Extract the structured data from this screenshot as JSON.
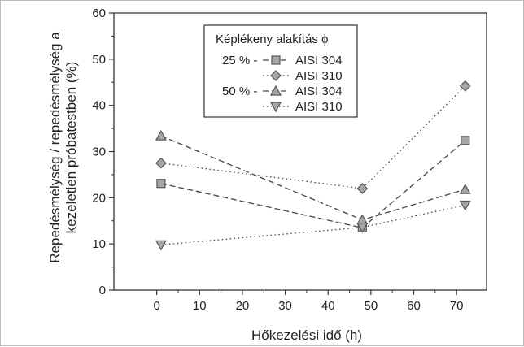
{
  "chart_data": {
    "type": "line",
    "xlabel": "Hőkezelési idő (h)",
    "ylabel_line1": "Repedésmélység / repedésmélység a",
    "ylabel_line2": "kezeletlen próbatestben (%)",
    "xlim": [
      -10,
      77
    ],
    "ylim": [
      0,
      60
    ],
    "xticks": [
      "0",
      "10",
      "20",
      "30",
      "40",
      "50",
      "60",
      "70"
    ],
    "yticks": [
      "0",
      "10",
      "20",
      "30",
      "40",
      "50",
      "60"
    ],
    "x": [
      1,
      48,
      72
    ],
    "series": [
      {
        "name": "AISI 304",
        "group": "25 %",
        "values": [
          23.1,
          13.5,
          32.4
        ],
        "marker": "square",
        "dash": "dashed"
      },
      {
        "name": "AISI 310",
        "group": "25 %",
        "values": [
          27.5,
          22.0,
          44.2
        ],
        "marker": "diamond",
        "dash": "dotted"
      },
      {
        "name": "AISI 304",
        "group": "50 %",
        "values": [
          33.4,
          15.2,
          21.8
        ],
        "marker": "triangle-up",
        "dash": "dashed"
      },
      {
        "name": "AISI 310",
        "group": "50 %",
        "values": [
          9.8,
          13.6,
          18.4
        ],
        "marker": "triangle-down",
        "dash": "dotted"
      }
    ],
    "legend": {
      "title": "Képlékeny alakítás ϕ",
      "group_labels": [
        "25 % -",
        "50 % -"
      ],
      "placement": "top-center"
    },
    "grid": false
  },
  "colors": {
    "line": "#444444",
    "marker_fill": "#a6a6a6",
    "marker_stroke": "#555555"
  }
}
